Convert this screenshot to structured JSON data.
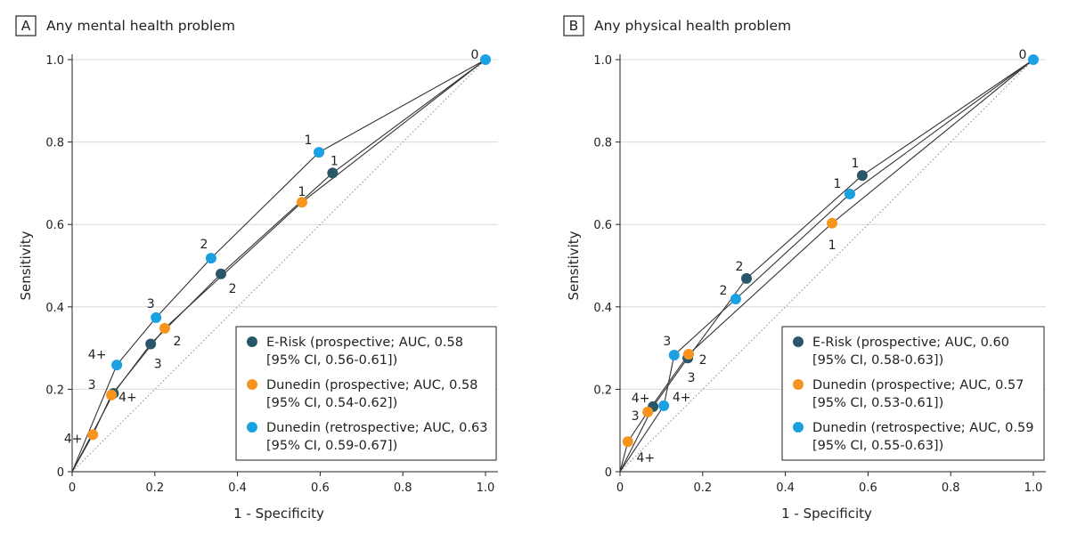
{
  "chart_data": [
    {
      "type": "line",
      "panel_letter": "A",
      "title": "Any mental health problem",
      "xlabel": "1 - Specificity",
      "ylabel": "Sensitivity",
      "xlim": [
        0,
        1
      ],
      "ylim": [
        0,
        1
      ],
      "xticks": [
        "0",
        "0.2",
        "0.4",
        "0.6",
        "0.8",
        "1.0"
      ],
      "yticks": [
        "0",
        "0.2",
        "0.4",
        "0.6",
        "0.8",
        "1.0"
      ],
      "grid": "horizontal",
      "reference_line": "diagonal dotted",
      "legend_position": "bottom-right",
      "series": [
        {
          "name": "E-Risk (prospective; AUC, 0.58",
          "name_line2": "[95% CI, 0.56-0.61])",
          "color": "#2a5767",
          "points": [
            {
              "label": "4+",
              "x": 0.1,
              "y": 0.19
            },
            {
              "label": "3",
              "x": 0.19,
              "y": 0.31
            },
            {
              "label": "2",
              "x": 0.36,
              "y": 0.48
            },
            {
              "label": "1",
              "x": 0.63,
              "y": 0.725
            }
          ]
        },
        {
          "name": "Dunedin (prospective; AUC, 0.58",
          "name_line2": "[95% CI, 0.54-0.62])",
          "color": "#f7941d",
          "points": [
            {
              "label": "4+",
              "x": 0.05,
              "y": 0.09
            },
            {
              "label": "3",
              "x": 0.095,
              "y": 0.186
            },
            {
              "label": "2",
              "x": 0.224,
              "y": 0.348
            },
            {
              "label": "1",
              "x": 0.556,
              "y": 0.654
            }
          ]
        },
        {
          "name": "Dunedin (retrospective; AUC, 0.63",
          "name_line2": "[95% CI, 0.59-0.67])",
          "color": "#1ba1e2",
          "points": [
            {
              "label": "4+",
              "x": 0.108,
              "y": 0.259
            },
            {
              "label": "3",
              "x": 0.203,
              "y": 0.374
            },
            {
              "label": "2",
              "x": 0.336,
              "y": 0.518
            },
            {
              "label": "1",
              "x": 0.597,
              "y": 0.775
            },
            {
              "label": "0",
              "x": 1.0,
              "y": 1.0
            }
          ]
        }
      ]
    },
    {
      "type": "line",
      "panel_letter": "B",
      "title": "Any physical health problem",
      "xlabel": "1 - Specificity",
      "ylabel": "Sensitivity",
      "xlim": [
        0,
        1
      ],
      "ylim": [
        0,
        1
      ],
      "xticks": [
        "0",
        "0.2",
        "0.4",
        "0.6",
        "0.8",
        "1.0"
      ],
      "yticks": [
        "0",
        "0.2",
        "0.4",
        "0.6",
        "0.8",
        "1.0"
      ],
      "grid": "horizontal",
      "reference_line": "diagonal dotted",
      "legend_position": "bottom-right",
      "series": [
        {
          "name": "E-Risk (prospective; AUC, 0.60",
          "name_line2": "[95% CI, 0.58-0.63])",
          "color": "#2a5767",
          "points": [
            {
              "label": "4+",
              "x": 0.08,
              "y": 0.158
            },
            {
              "label": "3",
              "x": 0.164,
              "y": 0.276
            },
            {
              "label": "2",
              "x": 0.306,
              "y": 0.469
            },
            {
              "label": "1",
              "x": 0.586,
              "y": 0.719
            }
          ]
        },
        {
          "name": "Dunedin (prospective; AUC, 0.57",
          "name_line2": "[95% CI, 0.53-0.61])",
          "color": "#f7941d",
          "points": [
            {
              "label": "4+",
              "x": 0.019,
              "y": 0.073
            },
            {
              "label": "3",
              "x": 0.067,
              "y": 0.145
            },
            {
              "label": "2",
              "x": 0.166,
              "y": 0.285
            },
            {
              "label": "1",
              "x": 0.513,
              "y": 0.603
            }
          ]
        },
        {
          "name": "Dunedin (retrospective; AUC, 0.59",
          "name_line2": "[95% CI, 0.55-0.63])",
          "color": "#1ba1e2",
          "points": [
            {
              "label": "4+",
              "x": 0.106,
              "y": 0.16
            },
            {
              "label": "3",
              "x": 0.131,
              "y": 0.283
            },
            {
              "label": "2",
              "x": 0.28,
              "y": 0.419
            },
            {
              "label": "1",
              "x": 0.556,
              "y": 0.674
            },
            {
              "label": "0",
              "x": 1.0,
              "y": 1.0
            }
          ]
        }
      ]
    }
  ]
}
